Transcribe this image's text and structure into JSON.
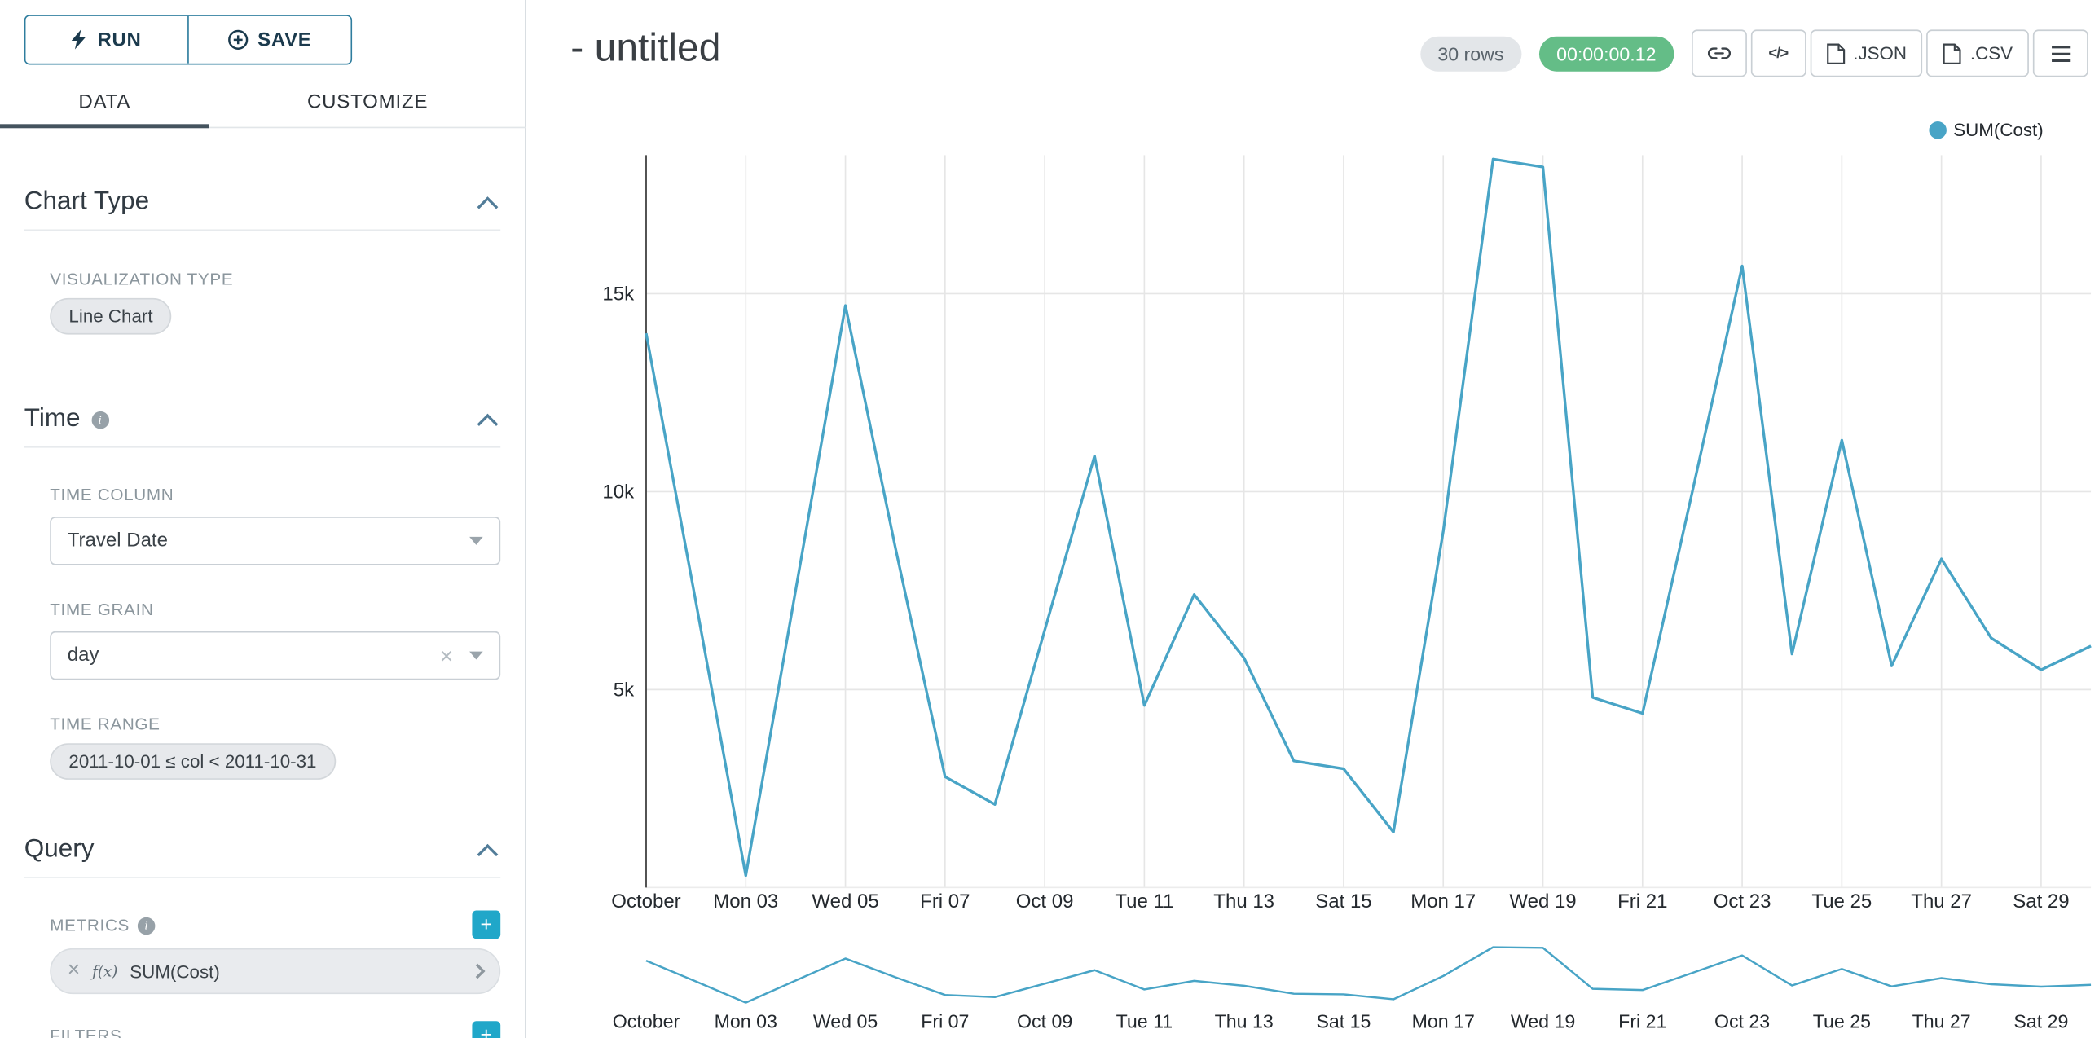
{
  "colors": {
    "accent": "#20a7c9",
    "timer_badge": "#64bd87",
    "run_save_border": "#2e7d9e",
    "run_save_text": "#1b3a4d"
  },
  "sidebar": {
    "run_label": "RUN",
    "save_label": "SAVE",
    "tabs": {
      "data": "DATA",
      "customize": "CUSTOMIZE"
    },
    "chart_type_section": {
      "title": "Chart Type",
      "viz_type_label": "VISUALIZATION TYPE",
      "viz_type_value": "Line Chart"
    },
    "time_section": {
      "title": "Time",
      "time_column_label": "TIME COLUMN",
      "time_column_value": "Travel Date",
      "time_grain_label": "TIME GRAIN",
      "time_grain_value": "day",
      "time_range_label": "TIME RANGE",
      "time_range_value": "2011-10-01 ≤ col < 2011-10-31"
    },
    "query_section": {
      "title": "Query",
      "metrics_label": "METRICS",
      "metric_prefix": "ƒ(x)",
      "metric_value": "SUM(Cost)",
      "filters_label": "FILTERS"
    }
  },
  "header": {
    "title": "- untitled",
    "rows_badge": "30 rows",
    "timer_badge": "00:00:00.12",
    "json_button": ".JSON",
    "csv_button": ".CSV"
  },
  "chart_data": {
    "type": "line",
    "title": "",
    "legend": [
      "SUM(Cost)"
    ],
    "legend_position": "top-right",
    "grid": true,
    "line_color": "#48a4c6",
    "x": [
      "2011-10-01",
      "2011-10-02",
      "2011-10-03",
      "2011-10-04",
      "2011-10-05",
      "2011-10-06",
      "2011-10-07",
      "2011-10-08",
      "2011-10-09",
      "2011-10-10",
      "2011-10-11",
      "2011-10-12",
      "2011-10-13",
      "2011-10-14",
      "2011-10-15",
      "2011-10-16",
      "2011-10-17",
      "2011-10-18",
      "2011-10-19",
      "2011-10-20",
      "2011-10-21",
      "2011-10-22",
      "2011-10-23",
      "2011-10-24",
      "2011-10-25",
      "2011-10-26",
      "2011-10-27",
      "2011-10-28",
      "2011-10-29",
      "2011-10-30"
    ],
    "series": [
      {
        "name": "SUM(Cost)",
        "values": [
          14000,
          7200,
          300,
          7500,
          14700,
          8600,
          2800,
          2100,
          6500,
          10900,
          4600,
          7400,
          5800,
          3200,
          3000,
          1400,
          9000,
          18400,
          18200,
          4800,
          4400,
          10000,
          15700,
          5900,
          11300,
          5600,
          8300,
          6300,
          5500,
          6100
        ]
      }
    ],
    "x_tick_labels": [
      "October",
      "Mon 03",
      "Wed 05",
      "Fri 07",
      "Oct 09",
      "Tue 11",
      "Thu 13",
      "Sat 15",
      "Mon 17",
      "Wed 19",
      "Fri 21",
      "Oct 23",
      "Tue 25",
      "Thu 27",
      "Sat 29"
    ],
    "y_ticks": [
      5000,
      10000,
      15000
    ],
    "y_tick_labels": [
      "5k",
      "10k",
      "15k"
    ],
    "ylim": [
      0,
      18500
    ],
    "xlabel": "",
    "ylabel": ""
  }
}
